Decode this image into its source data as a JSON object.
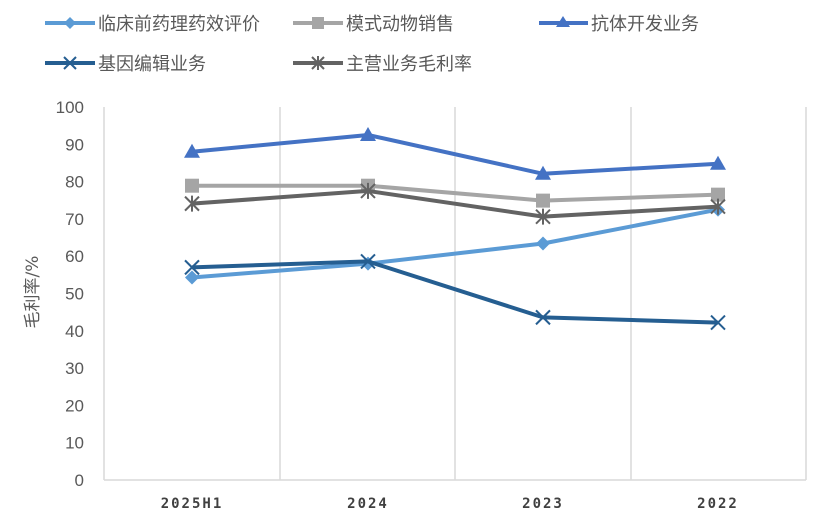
{
  "chart_data": {
    "type": "line",
    "title": "",
    "xlabel": "",
    "ylabel": "毛利率/%",
    "ylim": [
      0,
      100
    ],
    "yticks": [
      0,
      10,
      20,
      30,
      40,
      50,
      60,
      70,
      80,
      90,
      100
    ],
    "grid": "vertical category dividers",
    "legend_position": "top",
    "categories": [
      "2025H1",
      "2024",
      "2023",
      "2022"
    ],
    "series": [
      {
        "name": "临床前药理药效评价",
        "marker": "diamond",
        "color": "#5B9BD5",
        "values": [
          54.3,
          58.0,
          63.4,
          72.5
        ]
      },
      {
        "name": "模式动物销售",
        "marker": "square",
        "color": "#A5A5A5",
        "values": [
          78.9,
          78.9,
          74.9,
          76.5
        ]
      },
      {
        "name": "抗体开发业务",
        "marker": "triangle",
        "color": "#4472C4",
        "values": [
          88.0,
          92.5,
          82.1,
          84.8
        ]
      },
      {
        "name": "基因编辑业务",
        "marker": "x",
        "color": "#255E91",
        "values": [
          57.0,
          58.6,
          43.6,
          42.2
        ]
      },
      {
        "name": "主营业务毛利率",
        "marker": "asterisk",
        "color": "#636363",
        "values": [
          74.1,
          77.5,
          70.6,
          73.3
        ]
      }
    ]
  },
  "legend": {
    "items": [
      "临床前药理药效评价",
      "模式动物销售",
      "抗体开发业务",
      "基因编辑业务",
      "主营业务毛利率"
    ]
  },
  "axis": {
    "ylabel": "毛利率/%",
    "yticks": [
      "0",
      "10",
      "20",
      "30",
      "40",
      "50",
      "60",
      "70",
      "80",
      "90",
      "100"
    ],
    "xticks": [
      "2025H1",
      "2024",
      "2023",
      "2022"
    ]
  }
}
